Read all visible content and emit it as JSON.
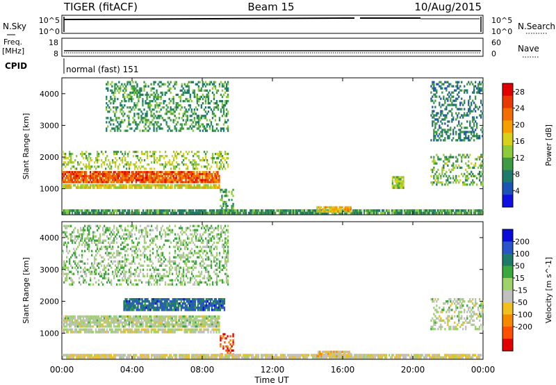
{
  "header": {
    "radar": "TIGER (fitACF)",
    "beam": "Beam 15",
    "date": "10/Aug/2015"
  },
  "sky_panel": {
    "left_label": "N.Sky",
    "right_label": "N.Search",
    "left_ticks": [
      "10^5",
      "10^0"
    ],
    "right_ticks": [
      "10^5",
      "10^0"
    ]
  },
  "freq_panel": {
    "left_label_top": "Freq.",
    "left_label_bottom": "[MHz]",
    "right_label": "Nave",
    "left_ticks": [
      "18",
      "8"
    ],
    "right_ticks": [
      "60",
      "0"
    ]
  },
  "cpid": {
    "label": "CPID",
    "value": "normal (fast) 151"
  },
  "x_axis": {
    "title": "Time UT",
    "ticks": [
      "00:00",
      "04:00",
      "08:00",
      "12:00",
      "16:00",
      "20:00",
      "00:00"
    ]
  },
  "colors": {
    "power": [
      "#1010e0",
      "#1b54b4",
      "#1f7a6a",
      "#3f9a45",
      "#8ecb3c",
      "#d8d01a",
      "#f5a000",
      "#f26e00",
      "#e83a00",
      "#e00000"
    ],
    "velocity": [
      "#0a0ad8",
      "#2a55c8",
      "#1f7a6a",
      "#3aa83c",
      "#9ed26a",
      "#c0c0c0",
      "#f0c020",
      "#f58a00",
      "#ff5000",
      "#e00000"
    ]
  },
  "chart_data": [
    {
      "type": "heatmap",
      "title": "Power",
      "ylabel": "Slant Range [km]",
      "xlabel": "",
      "x_range": [
        "00:00",
        "24:00"
      ],
      "ylim": [
        180,
        4500
      ],
      "y_ticks": [
        1000,
        2000,
        3000,
        4000
      ],
      "colorbar": {
        "label": "Power [dB]",
        "ticks": [
          4,
          8,
          12,
          16,
          20,
          24,
          28
        ],
        "range": [
          0,
          30
        ]
      },
      "regions": [
        {
          "x": [
            0.0,
            9.0
          ],
          "y": [
            1180,
            1560
          ],
          "value": 24,
          "description_hint": ""
        },
        {
          "x": [
            0.0,
            9.0
          ],
          "y": [
            1000,
            1150
          ],
          "value": 16
        },
        {
          "x": [
            0.0,
            9.5
          ],
          "y": [
            1600,
            2200
          ],
          "value": 14
        },
        {
          "x": [
            2.5,
            9.5
          ],
          "y": [
            2800,
            4400
          ],
          "value": 10
        },
        {
          "x": [
            9.0,
            9.8
          ],
          "y": [
            300,
            1000
          ],
          "value": 10
        },
        {
          "x": [
            0.0,
            24.0
          ],
          "y": [
            200,
            350
          ],
          "value": 10
        },
        {
          "x": [
            14.5,
            16.5
          ],
          "y": [
            250,
            450
          ],
          "value": 18
        },
        {
          "x": [
            18.8,
            19.5
          ],
          "y": [
            1000,
            1400
          ],
          "value": 14
        },
        {
          "x": [
            21.0,
            24.0
          ],
          "y": [
            1100,
            2100
          ],
          "value": 12
        },
        {
          "x": [
            21.0,
            24.0
          ],
          "y": [
            2500,
            4400
          ],
          "value": 8
        }
      ]
    },
    {
      "type": "heatmap",
      "title": "Velocity",
      "ylabel": "Slant Range [km]",
      "xlabel": "Time UT",
      "x_range": [
        "00:00",
        "24:00"
      ],
      "ylim": [
        180,
        4500
      ],
      "y_ticks": [
        1000,
        2000,
        3000,
        4000
      ],
      "colorbar": {
        "label": "Velocity [m s^-1]",
        "ticks": [
          200,
          100,
          50,
          15,
          -15,
          -50,
          -100,
          -200
        ],
        "range": [
          -250,
          250
        ]
      },
      "regions": [
        {
          "x": [
            0.0,
            9.0
          ],
          "y": [
            1180,
            1560
          ],
          "value": 0
        },
        {
          "x": [
            3.5,
            9.3
          ],
          "y": [
            1700,
            2100
          ],
          "value": 150
        },
        {
          "x": [
            0.0,
            9.0
          ],
          "y": [
            1000,
            1150
          ],
          "value": -10
        },
        {
          "x": [
            0.0,
            9.5
          ],
          "y": [
            2500,
            4400
          ],
          "value": 30
        },
        {
          "x": [
            9.0,
            9.8
          ],
          "y": [
            300,
            1000
          ],
          "value": -180
        },
        {
          "x": [
            0.0,
            24.0
          ],
          "y": [
            200,
            350
          ],
          "value": -40
        },
        {
          "x": [
            14.5,
            16.5
          ],
          "y": [
            250,
            450
          ],
          "value": -60
        },
        {
          "x": [
            21.0,
            24.0
          ],
          "y": [
            1100,
            2100
          ],
          "value": 0
        }
      ]
    }
  ]
}
